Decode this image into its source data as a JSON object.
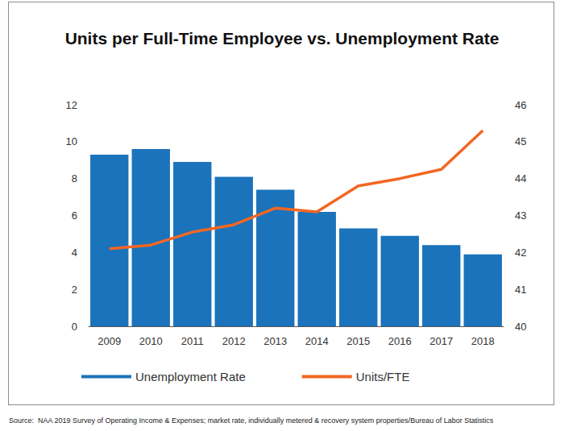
{
  "chart_data": {
    "type": "bar",
    "title": "Units per Full-Time Employee vs. Unemployment Rate",
    "source": "Source:  NAA 2019 Survey of Operating Income & Expenses; market rate, individually metered & recovery system properties/Bureau of Labor Statistics",
    "categories": [
      "2009",
      "2010",
      "2011",
      "2012",
      "2013",
      "2014",
      "2015",
      "2016",
      "2017",
      "2018"
    ],
    "series": [
      {
        "name": "Unemployment Rate",
        "type": "bar",
        "color": "#1a73bb",
        "values": [
          9.3,
          9.6,
          8.9,
          8.1,
          7.4,
          6.2,
          5.3,
          4.9,
          4.4,
          3.9
        ]
      },
      {
        "name": "Units/FTE",
        "type": "line",
        "color": "#f26722",
        "axis": "y2",
        "marker": "none",
        "values": [
          42.1,
          42.2,
          42.55,
          42.75,
          43.2,
          43.1,
          43.8,
          44.0,
          44.25,
          45.3
        ]
      }
    ],
    "ylim": [
      0,
      12
    ],
    "yticks": [
      0,
      2,
      4,
      6,
      8,
      10,
      12
    ],
    "y2lim": [
      40,
      46
    ],
    "y2ticks": [
      40,
      41,
      42,
      43,
      44,
      45,
      46
    ],
    "grid": false,
    "legend": "bottom"
  }
}
